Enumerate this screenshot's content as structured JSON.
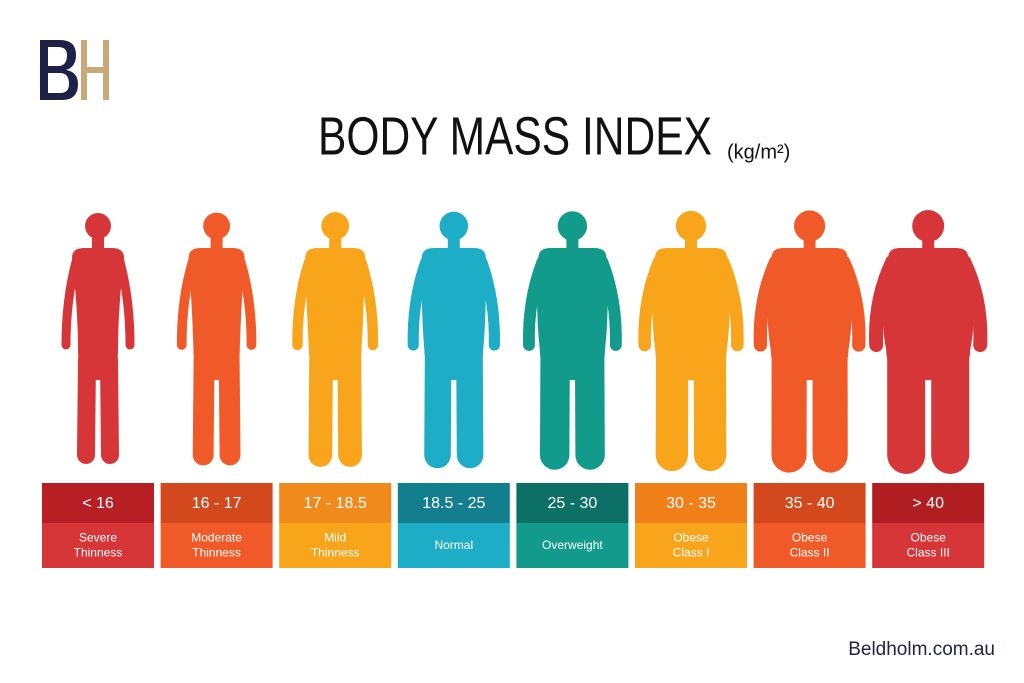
{
  "title": "BODY MASS INDEX",
  "unit": "(kg/m²)",
  "categories": [
    {
      "range": "< 16",
      "label": [
        "Severe",
        "Thinness"
      ],
      "color": "#d63638",
      "header_color": "#b81f24"
    },
    {
      "range": "16 - 17",
      "label": [
        "Moderate",
        "Thinness"
      ],
      "color": "#f05a28",
      "header_color": "#d4481e"
    },
    {
      "range": "17 - 18.5",
      "label": [
        "Mild",
        "Thinness"
      ],
      "color": "#f9a51b",
      "header_color": "#f08a1c"
    },
    {
      "range": "18.5 - 25",
      "label": [
        "Normal"
      ],
      "color": "#1eadc6",
      "header_color": "#137f8e"
    },
    {
      "range": "25 - 30",
      "label": [
        "Overweight"
      ],
      "color": "#129a8b",
      "header_color": "#0d7065"
    },
    {
      "range": "30 - 35",
      "label": [
        "Obese",
        "Class I"
      ],
      "color": "#f9a51b",
      "header_color": "#f07f1a"
    },
    {
      "range": "35 - 40",
      "label": [
        "Obese",
        "Class II"
      ],
      "color": "#f05a28",
      "header_color": "#d4481e"
    },
    {
      "range": "> 40",
      "label": [
        "Obese",
        "Class III"
      ],
      "color": "#d63638",
      "header_color": "#b01e22"
    }
  ],
  "footer": "Beldholm.com.au"
}
